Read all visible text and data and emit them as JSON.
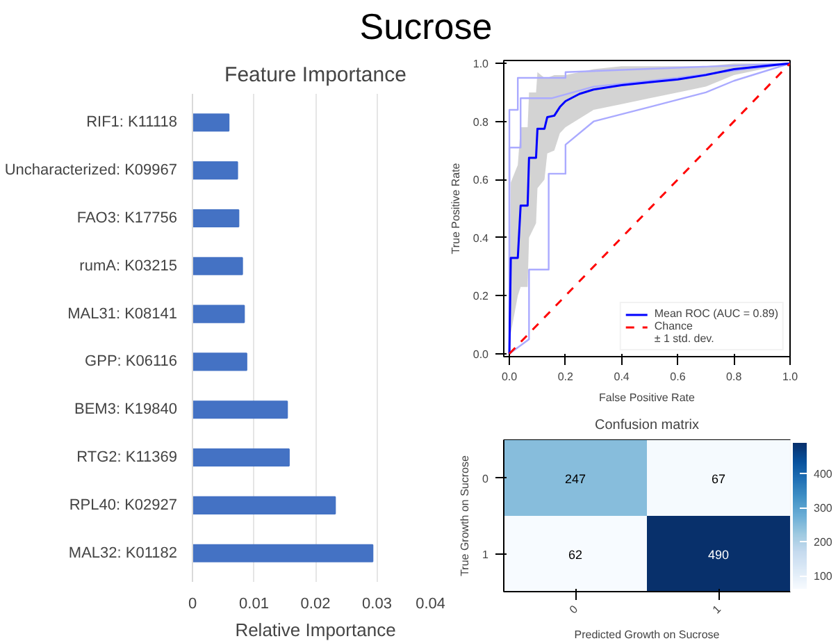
{
  "chart_data": [
    {
      "type": "bar",
      "orientation": "horizontal",
      "title": "Feature Importance",
      "xlabel": "Relative Importance",
      "annotations": [
        "Sucrose"
      ],
      "categories": [
        "RIF1: K11118",
        "Uncharacterized: K09967",
        "FAO3: K17756",
        "rumA: K03215",
        "MAL31: K08141",
        "GPP: K06116",
        "BEM3: K19840",
        "RTG2: K11369",
        "RPL40: K02927",
        "MAL32: K01182"
      ],
      "values": [
        0.0059,
        0.0073,
        0.0075,
        0.0081,
        0.0084,
        0.0088,
        0.0154,
        0.0157,
        0.0232,
        0.0293
      ],
      "color": "#4472c4",
      "xlim": [
        0,
        0.04
      ],
      "xticks": [
        0,
        0.01,
        0.02,
        0.03,
        0.04
      ],
      "grid": "x"
    },
    {
      "type": "line",
      "annotations": [
        "± 1 std. dev."
      ],
      "xlabel": "False Positive Rate",
      "ylabel": "True Positive Rate",
      "legend": "bottom right",
      "grid": false,
      "xlim": [
        -0.02,
        1.0
      ],
      "ylim": [
        -0.01,
        1.01
      ],
      "xticks": [
        {
          "value": 0,
          "label": "0.0"
        },
        0.2,
        0.4,
        0.6,
        0.8,
        {
          "value": 1,
          "label": "1.0"
        }
      ],
      "yticks": [
        {
          "value": 0,
          "label": "0.0"
        },
        0.2,
        0.4,
        0.6,
        0.8,
        {
          "value": 1,
          "label": "1.0"
        }
      ],
      "series": [
        {
          "type": "line",
          "color": "#aaaaff",
          "x": [
            0,
            0,
            0.03,
            0.03,
            0.2,
            0.2,
            1.0
          ],
          "values": [
            0,
            0.84,
            0.84,
            0.95,
            0.95,
            0.97,
            1.0
          ]
        },
        {
          "type": "line",
          "color": "#aaaaff",
          "x": [
            0,
            0.07,
            0.07,
            0.14,
            0.14,
            0.2,
            0.2,
            0.3,
            0.5,
            0.7,
            0.8,
            1.0
          ],
          "values": [
            0,
            0.05,
            0.29,
            0.29,
            0.62,
            0.62,
            0.72,
            0.8,
            0.85,
            0.9,
            0.94,
            1.0
          ]
        },
        {
          "type": "line",
          "color": "#aaaaff",
          "x": [
            0,
            0,
            0.04,
            0.04,
            0.15,
            0.3,
            0.6,
            1.0
          ],
          "values": [
            0,
            0.71,
            0.71,
            0.88,
            0.88,
            0.92,
            0.95,
            1.0
          ]
        },
        {
          "type": "line",
          "name": "Mean ROC (AUC = 0.89)",
          "color": "#0000ff",
          "lower": [
            0,
            0.07,
            0.2,
            0.23,
            0.23,
            0.4,
            0.45,
            0.57,
            0.6,
            0.69,
            0.7,
            0.76,
            0.78,
            0.81,
            0.84,
            0.86,
            0.88,
            0.9,
            0.92,
            0.96,
            0.98,
            1.0
          ],
          "upper": [
            0,
            0.59,
            0.65,
            0.78,
            0.78,
            0.9,
            0.9,
            0.97,
            0.95,
            0.95,
            0.96,
            0.96,
            0.96,
            0.97,
            0.98,
            0.99,
            0.99,
            0.99,
            0.99,
            1.0,
            1.0,
            1.0
          ],
          "x": [
            0,
            0.005,
            0.03,
            0.04,
            0.065,
            0.07,
            0.095,
            0.1,
            0.125,
            0.135,
            0.16,
            0.18,
            0.2,
            0.25,
            0.3,
            0.4,
            0.5,
            0.6,
            0.7,
            0.8,
            0.9,
            1.0
          ],
          "values": [
            0,
            0.33,
            0.33,
            0.51,
            0.51,
            0.675,
            0.675,
            0.775,
            0.775,
            0.815,
            0.82,
            0.85,
            0.87,
            0.895,
            0.91,
            0.925,
            0.935,
            0.945,
            0.96,
            0.98,
            0.99,
            1.0
          ]
        },
        {
          "type": "line",
          "name": "Chance",
          "color": "#ff0000",
          "line_style": "dashed",
          "x": [
            0,
            1.0
          ],
          "values": [
            0,
            1.0
          ]
        }
      ]
    },
    {
      "type": "heatmap",
      "title": "Confusion matrix",
      "xlabel": "Predicted Growth on Sucrose",
      "ylabel": "True Growth on Sucrose",
      "categories": [
        "0",
        "1"
      ],
      "y_categories": [
        "0",
        "1"
      ],
      "cells": [
        [
          247,
          67
        ],
        [
          62,
          490
        ]
      ],
      "data_labels": true,
      "clim": [
        62,
        490
      ],
      "cticks": [
        100,
        200,
        300,
        400
      ]
    }
  ]
}
